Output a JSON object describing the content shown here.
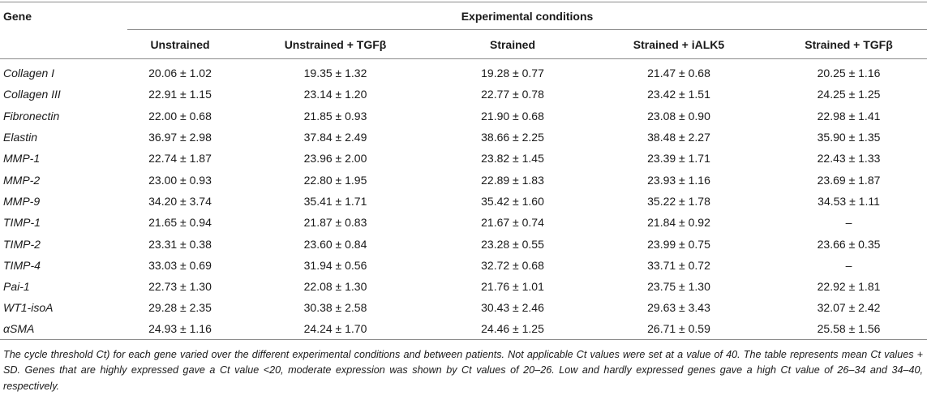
{
  "table": {
    "gene_header": "Gene",
    "group_header": "Experimental conditions",
    "columns": [
      "Unstrained",
      "Unstrained + TGFβ",
      "Strained",
      "Strained + iALK5",
      "Strained + TGFβ"
    ],
    "rows": [
      {
        "gene": "Collagen I",
        "values": [
          "20.06 ± 1.02",
          "19.35 ± 1.32",
          "19.28 ± 0.77",
          "21.47 ± 0.68",
          "20.25 ± 1.16"
        ]
      },
      {
        "gene": "Collagen III",
        "values": [
          "22.91 ± 1.15",
          "23.14 ± 1.20",
          "22.77 ± 0.78",
          "23.42 ± 1.51",
          "24.25 ± 1.25"
        ]
      },
      {
        "gene": "Fibronectin",
        "values": [
          "22.00 ± 0.68",
          "21.85 ± 0.93",
          "21.90 ± 0.68",
          "23.08 ± 0.90",
          "22.98 ± 1.41"
        ]
      },
      {
        "gene": "Elastin",
        "values": [
          "36.97 ± 2.98",
          "37.84 ± 2.49",
          "38.66 ± 2.25",
          "38.48 ± 2.27",
          "35.90 ± 1.35"
        ]
      },
      {
        "gene": "MMP-1",
        "values": [
          "22.74 ± 1.87",
          "23.96 ± 2.00",
          "23.82 ± 1.45",
          "23.39 ± 1.71",
          "22.43 ± 1.33"
        ]
      },
      {
        "gene": "MMP-2",
        "values": [
          "23.00 ± 0.93",
          "22.80 ± 1.95",
          "22.89 ± 1.83",
          "23.93 ± 1.16",
          "23.69 ± 1.87"
        ]
      },
      {
        "gene": "MMP-9",
        "values": [
          "34.20 ± 3.74",
          "35.41 ± 1.71",
          "35.42 ± 1.60",
          "35.22 ± 1.78",
          "34.53 ± 1.11"
        ]
      },
      {
        "gene": "TIMP-1",
        "values": [
          "21.65 ± 0.94",
          "21.87 ± 0.83",
          "21.67 ± 0.74",
          "21.84 ± 0.92",
          "–"
        ]
      },
      {
        "gene": "TIMP-2",
        "values": [
          "23.31 ± 0.38",
          "23.60 ± 0.84",
          "23.28 ± 0.55",
          "23.99 ± 0.75",
          "23.66 ± 0.35"
        ]
      },
      {
        "gene": "TIMP-4",
        "values": [
          "33.03 ± 0.69",
          "31.94 ± 0.56",
          "32.72 ± 0.68",
          "33.71 ± 0.72",
          "–"
        ]
      },
      {
        "gene": "Pai-1",
        "values": [
          "22.73 ± 1.30",
          "22.08 ± 1.30",
          "21.76 ± 1.01",
          "23.75 ± 1.30",
          "22.92 ± 1.81"
        ]
      },
      {
        "gene": "WT1-isoA",
        "values": [
          "29.28 ± 2.35",
          "30.38 ± 2.58",
          "30.43 ± 2.46",
          "29.63 ± 3.43",
          "32.07 ± 2.42"
        ]
      },
      {
        "gene": "αSMA",
        "values": [
          "24.93 ± 1.16",
          "24.24 ± 1.70",
          "24.46 ± 1.25",
          "26.71 ± 0.59",
          "25.58 ± 1.56"
        ]
      }
    ]
  },
  "footnote": "The cycle threshold Ct) for each gene varied over the different experimental conditions and between patients. Not applicable Ct values were set at a value of 40. The table represents mean Ct values + SD. Genes that are highly expressed gave a Ct value <20, moderate expression was shown by Ct values of 20–26. Low and hardly expressed genes gave a high Ct value of 26–34 and 34–40, respectively."
}
